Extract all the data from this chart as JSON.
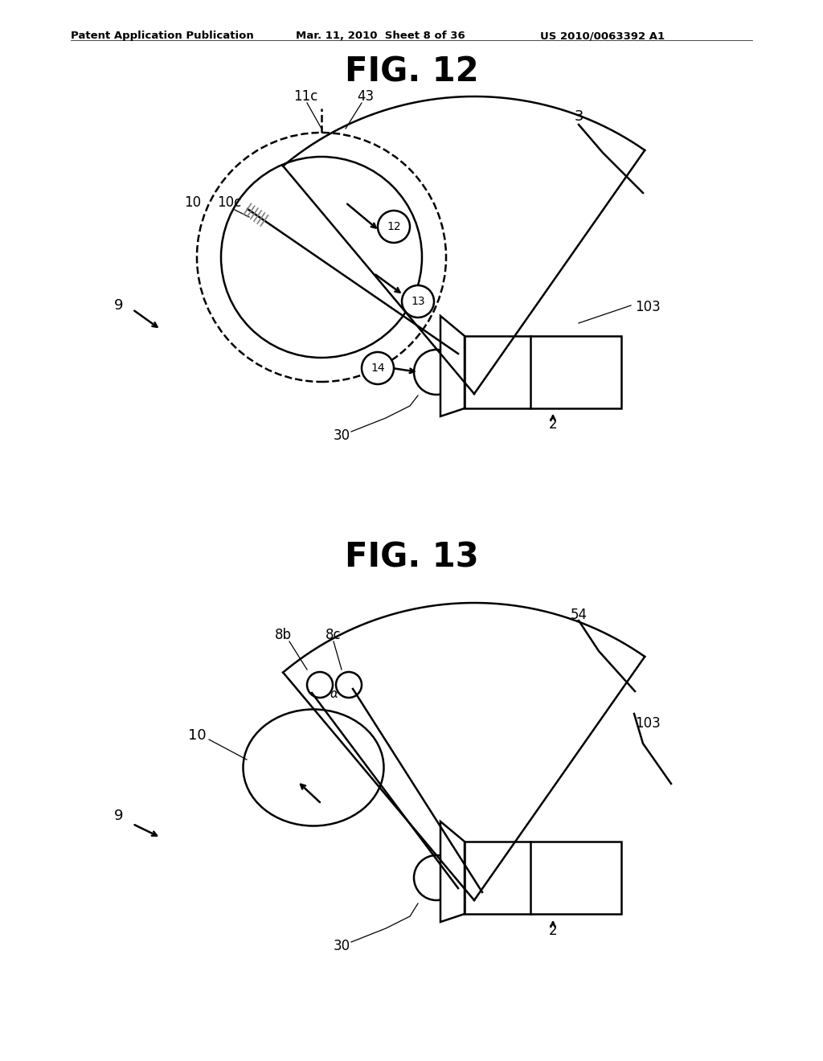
{
  "bg_color": "#ffffff",
  "header_left": "Patent Application Publication",
  "header_mid": "Mar. 11, 2010  Sheet 8 of 36",
  "header_right": "US 2010/0063392 A1",
  "fig12_title": "FIG. 12",
  "fig13_title": "FIG. 13",
  "line_color": "#000000"
}
